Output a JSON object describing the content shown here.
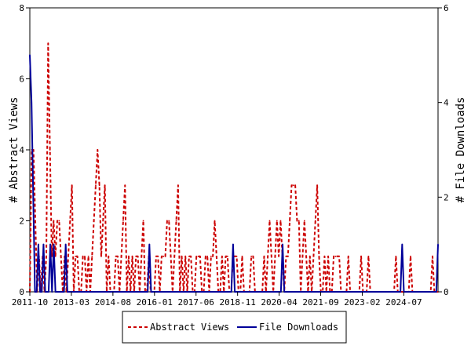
{
  "chart_data": {
    "type": "line",
    "y_left_label": "# Abstract Views",
    "y_right_label": "# File Downloads",
    "y_left_lim": [
      0,
      8
    ],
    "y_right_lim": [
      0,
      6
    ],
    "y_left_ticks": [
      "0",
      "2",
      "4",
      "6",
      "8"
    ],
    "y_right_ticks": [
      "0",
      "2",
      "4",
      "6"
    ],
    "x_start": "2011-10",
    "x_end": "2025-09",
    "x_ticks": [
      "2011-10",
      "2013-03",
      "2014-08",
      "2016-01",
      "2017-06",
      "2018-11",
      "2020-04",
      "2021-09",
      "2023-02",
      "2024-07"
    ],
    "legend_position": "bottom-center",
    "grid": false,
    "series": [
      {
        "name": "Abstract Views",
        "color": "#cc0000",
        "style": "dashed",
        "axis": "left",
        "values": [
          0,
          4,
          4,
          2,
          0,
          1,
          0,
          1,
          0,
          1,
          7,
          4,
          1,
          2,
          1,
          2,
          2,
          1,
          0,
          1,
          0,
          1,
          2,
          3,
          0,
          1,
          1,
          0,
          0,
          1,
          1,
          0,
          1,
          0,
          1,
          2,
          3,
          4,
          3,
          1,
          2,
          3,
          0,
          1,
          0,
          0,
          0,
          1,
          1,
          0,
          1,
          2,
          3,
          0,
          1,
          0,
          1,
          0,
          1,
          1,
          0,
          1,
          2,
          0,
          0,
          1,
          0,
          0,
          0,
          1,
          1,
          0,
          1,
          1,
          1,
          2,
          2,
          1,
          0,
          1,
          2,
          3,
          0,
          1,
          0,
          1,
          0,
          1,
          1,
          0,
          0,
          1,
          1,
          1,
          0,
          0,
          1,
          1,
          0,
          1,
          1,
          2,
          1,
          0,
          0,
          1,
          0,
          1,
          1,
          0,
          0,
          1,
          1,
          1,
          0,
          0,
          1,
          0,
          0,
          0,
          0,
          1,
          1,
          0,
          0,
          0,
          0,
          0,
          1,
          0,
          1,
          2,
          1,
          0,
          1,
          2,
          1,
          2,
          1,
          0,
          1,
          1,
          2,
          3,
          3,
          3,
          2,
          2,
          0,
          1,
          2,
          1,
          0,
          1,
          0,
          1,
          2,
          3,
          1,
          0,
          0,
          1,
          0,
          1,
          0,
          0,
          1,
          1,
          1,
          1,
          0,
          0,
          0,
          0,
          1,
          0,
          0,
          0,
          0,
          0,
          0,
          1,
          0,
          0,
          0,
          1,
          0,
          0,
          0,
          0,
          0,
          0,
          0,
          0,
          0,
          0,
          0,
          0,
          0,
          0,
          1,
          0,
          0,
          0,
          0,
          0,
          0,
          0,
          1,
          0,
          0,
          0,
          0,
          0,
          0,
          0,
          0,
          0,
          0,
          0,
          1,
          0,
          0,
          0
        ]
      },
      {
        "name": "File Downloads",
        "color": "#000099",
        "style": "solid",
        "axis": "right",
        "values": [
          5,
          4,
          2,
          0,
          0,
          1,
          0,
          0,
          1,
          0,
          0,
          0,
          1,
          0,
          1,
          0,
          0,
          0,
          0,
          0,
          0,
          1,
          0,
          0,
          0,
          0,
          0,
          0,
          0,
          0,
          0,
          0,
          0,
          0,
          0,
          0,
          0,
          0,
          0,
          0,
          0,
          0,
          0,
          0,
          0,
          0,
          0,
          0,
          0,
          0,
          0,
          0,
          0,
          0,
          0,
          0,
          0,
          0,
          0,
          0,
          0,
          0,
          0,
          0,
          0,
          0,
          0,
          0,
          0,
          0,
          1,
          0,
          0,
          0,
          0,
          0,
          0,
          0,
          0,
          0,
          0,
          0,
          0,
          0,
          0,
          0,
          0,
          0,
          0,
          0,
          0,
          0,
          0,
          0,
          0,
          0,
          0,
          0,
          0,
          0,
          0,
          0,
          0,
          0,
          0,
          0,
          0,
          0,
          0,
          0,
          0,
          0,
          0,
          0,
          0,
          0,
          0,
          0,
          0,
          1,
          0,
          0,
          0,
          0,
          0,
          0,
          0,
          0,
          0,
          0,
          0,
          0,
          0,
          0,
          0,
          0,
          0,
          0,
          0,
          0,
          0,
          0,
          0,
          0,
          0,
          0,
          0,
          0,
          1,
          0,
          0,
          0,
          0,
          0,
          0,
          0,
          0,
          0,
          0,
          0,
          0,
          0,
          0,
          0,
          0,
          0,
          0,
          0,
          0,
          0,
          0,
          0,
          0,
          0,
          0,
          0,
          0,
          0,
          0,
          0,
          0,
          0,
          0,
          0,
          0,
          0,
          0,
          0,
          0,
          0,
          0,
          0,
          0,
          0,
          0,
          0,
          0,
          0,
          0,
          0,
          0,
          0,
          0,
          0,
          0,
          0,
          0,
          0,
          0,
          0,
          0,
          0,
          0,
          0,
          0,
          0,
          0,
          0,
          1,
          0,
          0,
          0,
          0,
          0,
          0,
          0,
          0,
          0,
          0,
          0,
          0,
          0,
          0,
          0,
          0,
          0,
          0,
          0,
          0,
          1
        ]
      }
    ]
  }
}
